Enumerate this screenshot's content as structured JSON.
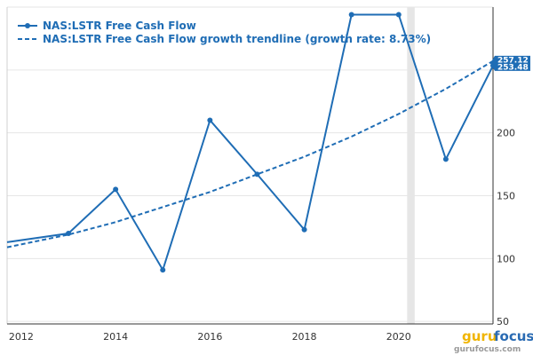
{
  "chart_data": {
    "type": "line",
    "x": [
      2011.7,
      2013,
      2014,
      2015,
      2016,
      2017,
      2018,
      2019,
      2020,
      2021,
      2022
    ],
    "series": [
      {
        "name": "NAS:LSTR Free Cash Flow",
        "values": [
          113,
          120,
          155,
          91,
          210,
          167,
          123,
          294,
          294,
          179,
          253.48
        ],
        "color": "#1f6db5",
        "style": "solid-with-markers"
      },
      {
        "name": "NAS:LSTR Free Cash Flow growth trendline (growth rate: 8.73%)",
        "x": [
          2011.7,
          2013,
          2014,
          2015,
          2016,
          2017,
          2018,
          2019,
          2020,
          2021,
          2022
        ],
        "values": [
          109,
          119,
          129,
          141,
          153,
          167,
          181,
          197,
          215,
          235,
          257.12
        ],
        "color": "#1f6db5",
        "style": "dashed"
      }
    ],
    "x_ticks": [
      "2012",
      "2014",
      "2016",
      "2018",
      "2020"
    ],
    "x_tick_values": [
      2012,
      2014,
      2016,
      2018,
      2020
    ],
    "y_ticks": [
      "50",
      "100",
      "150",
      "200"
    ],
    "y_tick_values": [
      50,
      100,
      150,
      200
    ],
    "xlim": [
      2011.7,
      2022
    ],
    "ylim": [
      48,
      300
    ],
    "grid": true,
    "legend_position": "top-left",
    "highlight_band": {
      "x0": 2020.18,
      "x1": 2020.34,
      "color": "#e6e6e6"
    },
    "last_value_flags": [
      "257.12",
      "253.48"
    ],
    "title": "",
    "xlabel": "",
    "ylabel": ""
  },
  "watermark": {
    "logo_part1": "guru",
    "logo_part2": "focus",
    "url": "gurufocus.com"
  }
}
